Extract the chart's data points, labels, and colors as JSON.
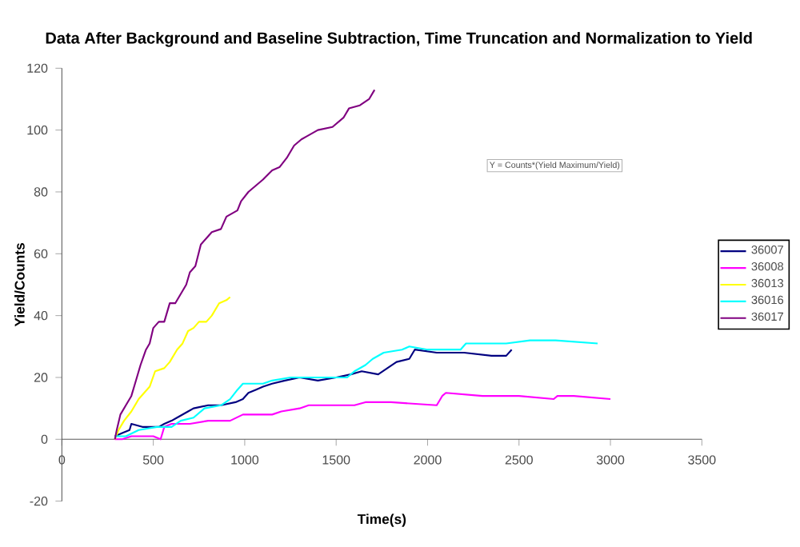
{
  "chart_data": {
    "type": "line",
    "title": "Data After Background and Baseline Subtraction, Time Truncation and Normalization to Yield",
    "xlabel": "Time(s)",
    "ylabel": "Yield/Counts",
    "annotations": [
      "Y = Counts*(Yield Maximum/Yield)"
    ],
    "xlim": [
      0,
      3500
    ],
    "xticks": [
      0,
      500,
      1000,
      1500,
      2000,
      2500,
      3000,
      3500
    ],
    "ylim": [
      -20,
      120
    ],
    "yticks": [
      -20,
      0,
      20,
      40,
      60,
      80,
      100,
      120
    ],
    "grid": false,
    "legend": "right",
    "marker": "none",
    "line_style": "solid",
    "series": [
      {
        "name": "36007",
        "color": "#000080",
        "x": [
          290,
          330,
          370,
          380,
          440,
          530,
          560,
          600,
          630,
          690,
          720,
          800,
          870,
          950,
          990,
          1020,
          1060,
          1100,
          1150,
          1220,
          1300,
          1400,
          1500,
          1580,
          1640,
          1730,
          1780,
          1830,
          1900,
          1930,
          2050,
          2200,
          2350,
          2430,
          2460
        ],
        "values": [
          1,
          2,
          3,
          5,
          4,
          4,
          5,
          6,
          7,
          9,
          10,
          11,
          11,
          12,
          13,
          15,
          16,
          17,
          18,
          19,
          20,
          19,
          20,
          21,
          22,
          21,
          23,
          25,
          26,
          29,
          28,
          28,
          27,
          27,
          29
        ]
      },
      {
        "name": "36008",
        "color": "#ff00ff",
        "x": [
          290,
          330,
          380,
          500,
          540,
          560,
          600,
          700,
          800,
          920,
          990,
          1150,
          1200,
          1300,
          1350,
          1450,
          1600,
          1660,
          1800,
          2050,
          2080,
          2100,
          2300,
          2500,
          2690,
          2710,
          2800,
          3000
        ],
        "values": [
          0,
          0,
          1,
          1,
          0,
          4,
          5,
          5,
          6,
          6,
          8,
          8,
          9,
          10,
          11,
          11,
          11,
          12,
          12,
          11,
          14,
          15,
          14,
          14,
          13,
          14,
          14,
          13
        ]
      },
      {
        "name": "36013",
        "color": "#ffff00",
        "x": [
          290,
          310,
          340,
          380,
          420,
          450,
          480,
          510,
          560,
          590,
          630,
          660,
          690,
          720,
          750,
          790,
          820,
          860,
          900,
          920
        ],
        "values": [
          0,
          3,
          6,
          9,
          13,
          15,
          17,
          22,
          23,
          25,
          29,
          31,
          35,
          36,
          38,
          38,
          40,
          44,
          45,
          46
        ]
      },
      {
        "name": "36016",
        "color": "#00ffff",
        "x": [
          290,
          350,
          420,
          520,
          600,
          650,
          720,
          780,
          870,
          920,
          960,
          990,
          1100,
          1150,
          1250,
          1400,
          1560,
          1600,
          1660,
          1700,
          1760,
          1860,
          1900,
          2000,
          2180,
          2210,
          2300,
          2430,
          2560,
          2700,
          2930
        ],
        "values": [
          1,
          1,
          3,
          4,
          4,
          6,
          7,
          10,
          11,
          13,
          16,
          18,
          18,
          19,
          20,
          20,
          20,
          22,
          24,
          26,
          28,
          29,
          30,
          29,
          29,
          31,
          31,
          31,
          32,
          32,
          31
        ]
      },
      {
        "name": "36017",
        "color": "#800080",
        "x": [
          290,
          300,
          320,
          350,
          380,
          400,
          430,
          460,
          480,
          500,
          530,
          560,
          590,
          620,
          650,
          680,
          700,
          730,
          760,
          790,
          820,
          870,
          900,
          960,
          980,
          1020,
          1060,
          1100,
          1150,
          1190,
          1230,
          1270,
          1310,
          1340,
          1400,
          1480,
          1540,
          1570,
          1630,
          1680,
          1710
        ],
        "values": [
          0,
          3,
          8,
          11,
          14,
          18,
          24,
          29,
          31,
          36,
          38,
          38,
          44,
          44,
          47,
          50,
          54,
          56,
          63,
          65,
          67,
          68,
          72,
          74,
          77,
          80,
          82,
          84,
          87,
          88,
          91,
          95,
          97,
          98,
          100,
          101,
          104,
          107,
          108,
          110,
          113
        ]
      }
    ]
  }
}
